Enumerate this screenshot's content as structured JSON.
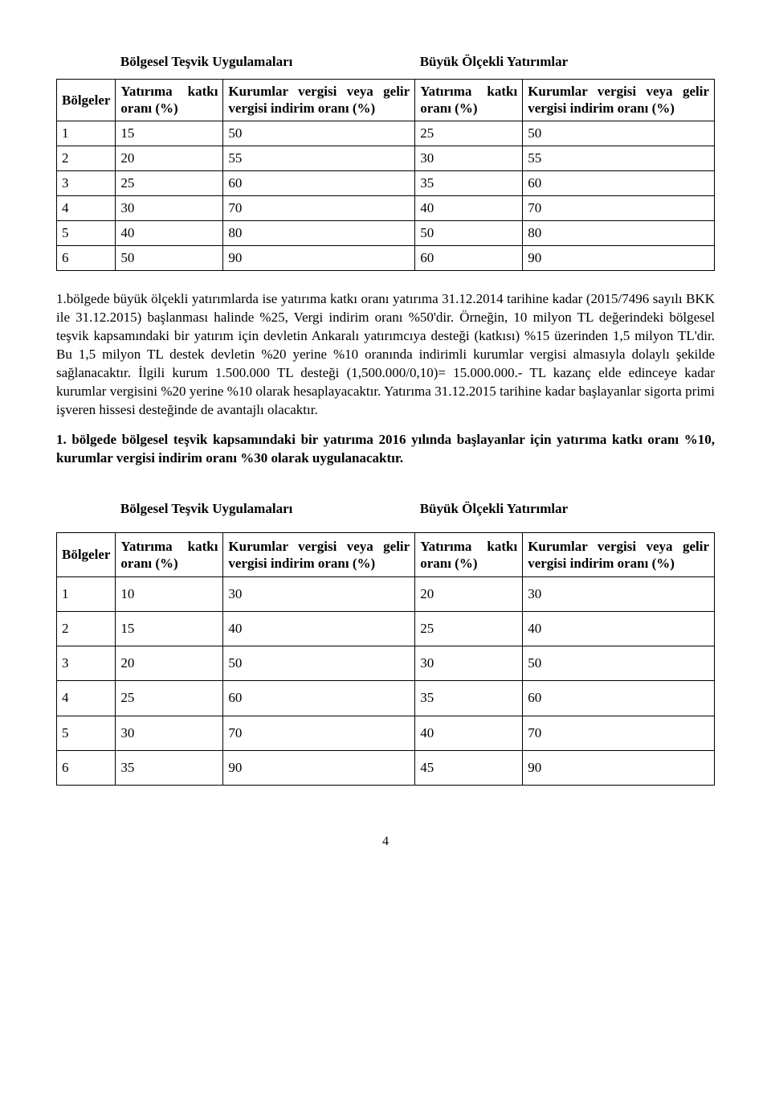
{
  "table1": {
    "group_headers": {
      "g1": "Bölgesel Teşvik Uygulamaları",
      "g2": "Büyük Ölçekli Yatırımlar"
    },
    "col_headers": {
      "c0": "Bölgeler",
      "c1": "Yatırıma katkı oranı (%)",
      "c2": "Kurumlar vergisi veya gelir vergisi indirim oranı (%)",
      "c3": "Yatırıma katkı oranı (%)",
      "c4": "Kurumlar vergisi veya gelir vergisi indirim oranı (%)"
    },
    "rows": [
      {
        "r": "1",
        "a": "15",
        "b": "50",
        "c": "25",
        "d": "50"
      },
      {
        "r": "2",
        "a": "20",
        "b": "55",
        "c": "30",
        "d": "55"
      },
      {
        "r": "3",
        "a": "25",
        "b": "60",
        "c": "35",
        "d": "60"
      },
      {
        "r": "4",
        "a": "30",
        "b": "70",
        "c": "40",
        "d": "70"
      },
      {
        "r": "5",
        "a": "40",
        "b": "80",
        "c": "50",
        "d": "80"
      },
      {
        "r": "6",
        "a": "50",
        "b": "90",
        "c": "60",
        "d": "90"
      }
    ]
  },
  "para1": "1.bölgede büyük ölçekli yatırımlarda ise yatırıma katkı oranı yatırıma 31.12.2014 tarihine kadar (2015/7496 sayılı BKK ile 31.12.2015) başlanması halinde %25, Vergi indirim oranı %50'dir. Örneğin, 10 milyon TL değerindeki bölgesel teşvik kapsamındaki bir yatırım için devletin Ankaralı yatırımcıya desteği (katkısı) %15 üzerinden 1,5 milyon TL'dir. Bu 1,5 milyon TL destek devletin %20 yerine %10 oranında indirimli kurumlar vergisi almasıyla dolaylı şekilde sağlanacaktır. İlgili kurum 1.500.000 TL desteği (1,500.000/0,10)= 15.000.000.- TL kazanç elde edinceye kadar kurumlar vergisini %20 yerine %10 olarak hesaplayacaktır. Yatırıma 31.12.2015 tarihine kadar başlayanlar sigorta primi işveren hissesi desteğinde de avantajlı olacaktır.",
  "para2": "1. bölgede bölgesel teşvik kapsamındaki bir yatırıma 2016 yılında başlayanlar için yatırıma katkı oranı %10, kurumlar vergisi indirim oranı %30 olarak uygulanacaktır.",
  "table2": {
    "group_headers": {
      "g1": "Bölgesel Teşvik Uygulamaları",
      "g2": "Büyük Ölçekli Yatırımlar"
    },
    "col_headers": {
      "c0": "Bölgeler",
      "c1": "Yatırıma katkı oranı (%)",
      "c2": "Kurumlar vergisi veya gelir vergisi indirim oranı (%)",
      "c3": "Yatırıma katkı oranı (%)",
      "c4": "Kurumlar vergisi veya gelir vergisi indirim oranı (%)"
    },
    "rows": [
      {
        "r": "1",
        "a": "10",
        "b": "30",
        "c": "20",
        "d": "30"
      },
      {
        "r": "2",
        "a": "15",
        "b": "40",
        "c": "25",
        "d": "40"
      },
      {
        "r": "3",
        "a": "20",
        "b": "50",
        "c": "30",
        "d": "50"
      },
      {
        "r": "4",
        "a": "25",
        "b": "60",
        "c": "35",
        "d": "60"
      },
      {
        "r": "5",
        "a": "30",
        "b": "70",
        "c": "40",
        "d": "70"
      },
      {
        "r": "6",
        "a": "35",
        "b": "90",
        "c": "45",
        "d": "90"
      }
    ]
  },
  "pagenum": "4",
  "colors": {
    "text": "#000000",
    "border": "#000000",
    "background": "#ffffff"
  }
}
